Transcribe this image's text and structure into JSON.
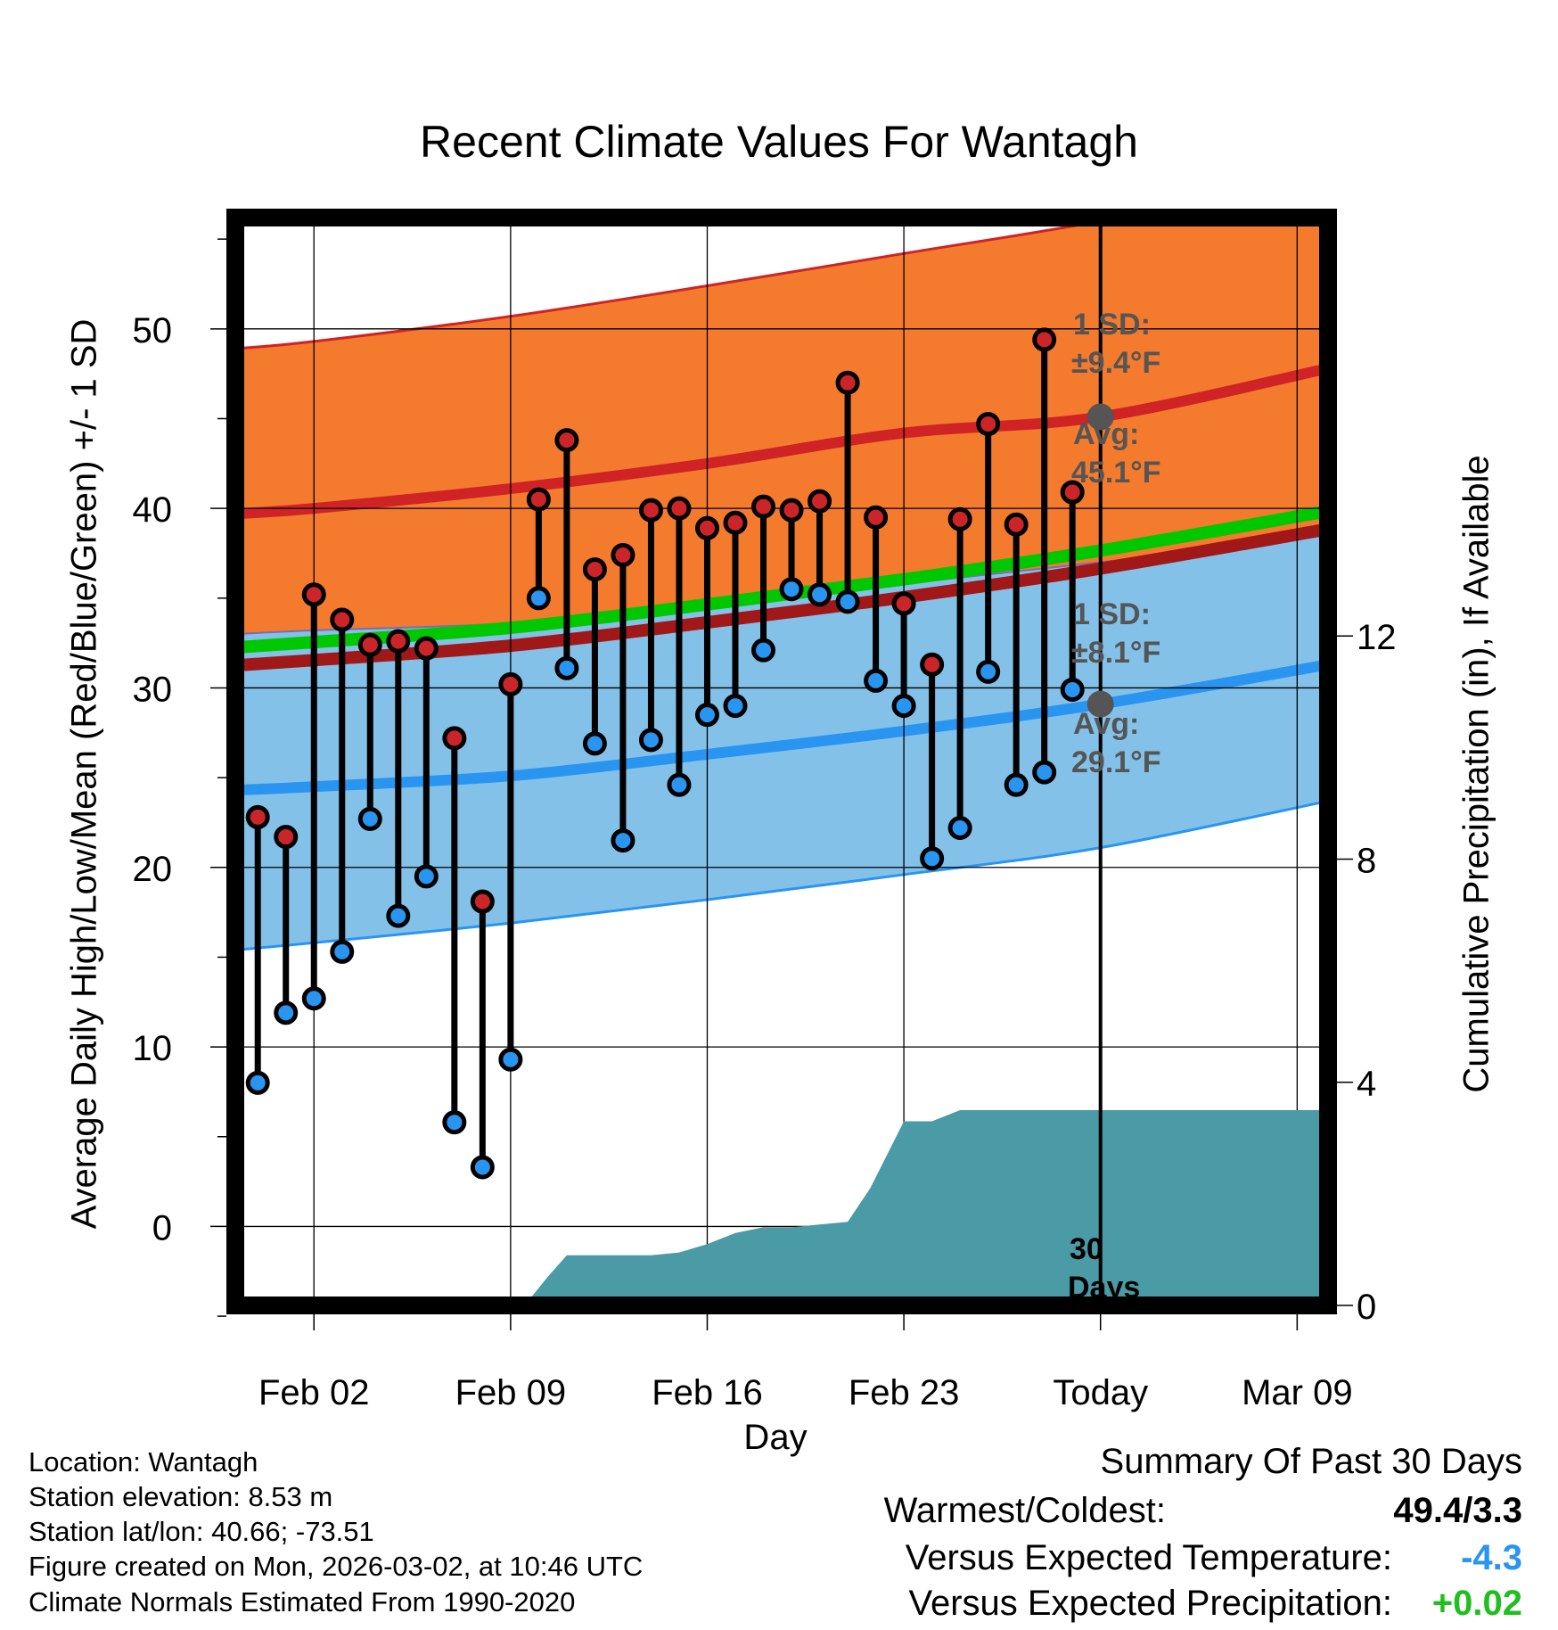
{
  "title": "Recent Climate Values For Wantagh",
  "ylabel_left": "Average Daily High/Low/Mean (Red/Blue/Green) +/- 1 SD",
  "ylabel_right": "Cumulative Precipitation (in), If Available",
  "xlabel": "Day",
  "annotations": {
    "high_sd": "1 SD:",
    "high_sd_value": "±9.4°F",
    "high_avg": "Avg:",
    "high_avg_value": "45.1°F",
    "low_sd": "1 SD:",
    "low_sd_value": "±8.1°F",
    "low_avg": "Avg:",
    "low_avg_value": "29.1°F",
    "days_line1": "30",
    "days_line2": "Days"
  },
  "metadata": {
    "location": "Location: Wantagh",
    "elevation": "Station elevation: 8.53 m",
    "latlon": "Station lat/lon: 40.66; -73.51",
    "created": "Figure created on Mon, 2026-03-02, at 10:46 UTC",
    "normals": "Climate Normals Estimated From 1990-2020"
  },
  "summary": {
    "title": "Summary Of Past 30 Days",
    "warmest_label": "Warmest/Coldest:",
    "warmest_value": "49.4/3.3",
    "temp_label": "Versus Expected Temperature:",
    "temp_value": "-4.3",
    "temp_color": "#2a95f0",
    "precip_label": "Versus Expected Precipitation:",
    "precip_value": "+0.02",
    "precip_color": "#1fbf1f"
  },
  "colors": {
    "orange_band": "#f47a2d",
    "blue_band": "#83c1e8",
    "high_avg_line": "#cf2326",
    "low_avg_line": "#2a95f0",
    "mean_green": "#00c800",
    "mean_dark": "#a01818",
    "precip_fill": "#4a9ba5",
    "high_dot": "#cc2529",
    "low_dot": "#2a95f0"
  },
  "chart_data": {
    "type": "line",
    "x_start": "Jan 31",
    "xlim": [
      -0.8,
      38.1
    ],
    "ylim_left": [
      -4.4,
      56.2
    ],
    "ylim_right": [
      0,
      19.5
    ],
    "xticks": [
      {
        "x": 2,
        "label": "Feb 02"
      },
      {
        "x": 9,
        "label": "Feb 09"
      },
      {
        "x": 16,
        "label": "Feb 16"
      },
      {
        "x": 23,
        "label": "Feb 23"
      },
      {
        "x": 30,
        "label": "Today"
      },
      {
        "x": 37,
        "label": "Mar 09"
      }
    ],
    "yticks_left": [
      0,
      10,
      20,
      30,
      40,
      50
    ],
    "yticks_right": [
      0,
      4,
      8,
      12
    ],
    "today_x": 30,
    "normals_x": [
      -0.8,
      2,
      9,
      16,
      23,
      30,
      38.1
    ],
    "normal_high": [
      39.7,
      40.0,
      41.1,
      42.5,
      44.2,
      45.1,
      47.8
    ],
    "normal_high_upper": [
      48.9,
      49.3,
      50.7,
      52.4,
      54.2,
      56.0,
      58.5
    ],
    "normal_high_lower": [
      30.5,
      30.8,
      31.6,
      32.9,
      34.3,
      36.0,
      38.2
    ],
    "normal_low": [
      24.3,
      24.5,
      25.1,
      26.3,
      27.6,
      29.1,
      31.3
    ],
    "normal_low_upper": [
      33.0,
      33.2,
      33.6,
      34.5,
      35.8,
      37.0,
      38.5
    ],
    "normal_low_lower": [
      15.4,
      15.8,
      16.9,
      18.2,
      19.6,
      21.1,
      23.7
    ],
    "normal_mean": [
      31.8,
      32.1,
      32.9,
      34.2,
      35.6,
      37.2,
      39.4
    ],
    "days": [
      0,
      1,
      2,
      3,
      4,
      5,
      6,
      7,
      8,
      9,
      10,
      11,
      12,
      13,
      14,
      15,
      16,
      17,
      18,
      19,
      20,
      21,
      22,
      23,
      24,
      25,
      26,
      27,
      28,
      29
    ],
    "highs": [
      22.8,
      21.7,
      35.2,
      33.8,
      32.4,
      32.6,
      32.2,
      27.2,
      18.1,
      30.2,
      40.5,
      43.8,
      36.6,
      37.4,
      39.9,
      40.0,
      38.9,
      39.2,
      40.1,
      39.9,
      40.4,
      47.0,
      39.5,
      34.7,
      31.3,
      39.4,
      44.7,
      39.1,
      49.4,
      40.9
    ],
    "lows": [
      8.0,
      11.9,
      12.7,
      15.3,
      22.7,
      17.3,
      19.5,
      5.8,
      3.3,
      9.3,
      35.0,
      31.1,
      26.9,
      21.5,
      27.1,
      24.6,
      28.5,
      29.0,
      32.1,
      35.5,
      35.2,
      34.8,
      30.4,
      29.0,
      20.5,
      22.2,
      30.9,
      24.6,
      25.3,
      29.9
    ],
    "precip_x": [
      -0.8,
      6.5,
      9.5,
      10.3,
      11.0,
      11.5,
      12.0,
      13.0,
      14.0,
      15.0,
      16.0,
      17.0,
      18.0,
      19.0,
      20.0,
      21.0,
      21.8,
      22.2,
      23.0,
      24.0,
      25.0,
      30.0,
      38.1
    ],
    "precip": [
      0,
      0,
      0,
      0.5,
      0.9,
      0.9,
      0.9,
      0.9,
      0.9,
      0.95,
      1.1,
      1.3,
      1.4,
      1.4,
      1.45,
      1.5,
      2.1,
      2.5,
      3.3,
      3.3,
      3.5,
      3.5,
      3.5
    ]
  }
}
